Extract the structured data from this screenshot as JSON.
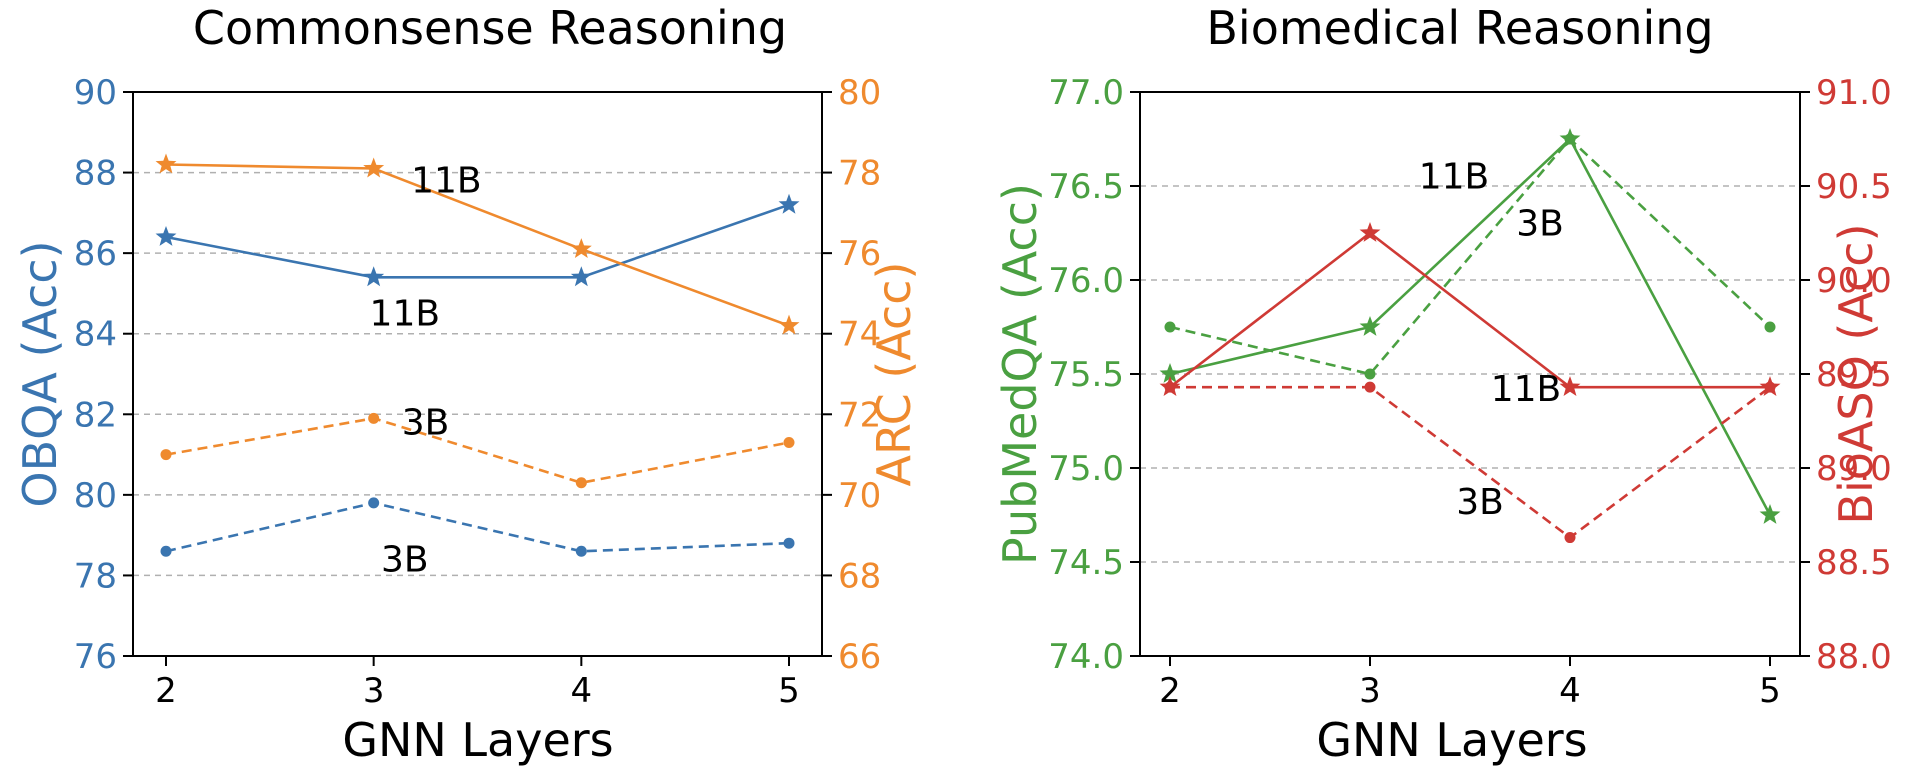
{
  "chart_data": [
    {
      "type": "line",
      "title": "Commonsense Reasoning",
      "xlabel": "GNN Layers",
      "x": [
        2,
        3,
        4,
        5
      ],
      "left_axis": {
        "label": "OBQA (Acc)",
        "color": "#3a75b0",
        "ylim": [
          76,
          90
        ],
        "ticks": [
          76,
          78,
          80,
          82,
          84,
          86,
          88,
          90
        ]
      },
      "right_axis": {
        "label": "ARC (Acc)",
        "color": "#ef8a2e",
        "ylim": [
          66,
          80
        ],
        "ticks": [
          66,
          68,
          70,
          72,
          74,
          76,
          78,
          80
        ]
      },
      "series": [
        {
          "name": "OBQA 11B",
          "axis": "left",
          "style": "solid",
          "marker": "star",
          "values": [
            86.4,
            85.4,
            85.4,
            87.2
          ]
        },
        {
          "name": "OBQA 3B",
          "axis": "left",
          "style": "dashed",
          "marker": "circle",
          "values": [
            78.6,
            79.8,
            78.6,
            78.8
          ]
        },
        {
          "name": "ARC 11B",
          "axis": "right",
          "style": "solid",
          "marker": "star",
          "values": [
            78.2,
            78.1,
            76.1,
            74.2
          ]
        },
        {
          "name": "ARC 3B",
          "axis": "right",
          "style": "dashed",
          "marker": "circle",
          "values": [
            71.0,
            71.9,
            70.3,
            71.3
          ]
        }
      ],
      "annotations": [
        {
          "text": "11B",
          "x": 3.35,
          "y_left": 87.8
        },
        {
          "text": "11B",
          "x": 3.15,
          "y_left": 84.5
        },
        {
          "text": "3B",
          "x": 3.25,
          "y_left": 81.8
        },
        {
          "text": "3B",
          "x": 3.15,
          "y_left": 78.4
        }
      ]
    },
    {
      "type": "line",
      "title": "Biomedical Reasoning",
      "xlabel": "GNN Layers",
      "x": [
        2,
        3,
        4,
        5
      ],
      "left_axis": {
        "label": "PubMedQA (Acc)",
        "color": "#4aa041",
        "ylim": [
          74.0,
          77.0
        ],
        "ticks": [
          "74.0",
          "74.5",
          "75.0",
          "75.5",
          "76.0",
          "76.5",
          "77.0"
        ]
      },
      "right_axis": {
        "label": "BioASQ (Acc)",
        "color": "#cf3a35",
        "ylim": [
          88.0,
          91.0
        ],
        "ticks": [
          "88.0",
          "88.5",
          "89.0",
          "89.5",
          "90.0",
          "90.5",
          "91.0"
        ]
      },
      "series": [
        {
          "name": "PubMedQA 11B",
          "axis": "left",
          "style": "solid",
          "marker": "star",
          "values": [
            75.5,
            75.75,
            76.75,
            74.75
          ]
        },
        {
          "name": "PubMedQA 3B",
          "axis": "left",
          "style": "dashed",
          "marker": "circle",
          "values": [
            75.75,
            75.5,
            76.75,
            75.75
          ]
        },
        {
          "name": "BioASQ 11B",
          "axis": "right",
          "style": "solid",
          "marker": "star",
          "values": [
            89.43,
            90.25,
            89.43,
            89.43
          ]
        },
        {
          "name": "BioASQ 3B",
          "axis": "right",
          "style": "dashed",
          "marker": "circle",
          "values": [
            89.43,
            89.43,
            88.63,
            89.43
          ]
        }
      ],
      "annotations": [
        {
          "text": "11B",
          "x": 3.42,
          "y_left": 76.55
        },
        {
          "text": "3B",
          "x": 3.85,
          "y_left": 76.3
        },
        {
          "text": "11B",
          "x": 3.78,
          "y_left": 75.42
        },
        {
          "text": "3B",
          "x": 3.55,
          "y_left": 74.82
        }
      ]
    }
  ]
}
